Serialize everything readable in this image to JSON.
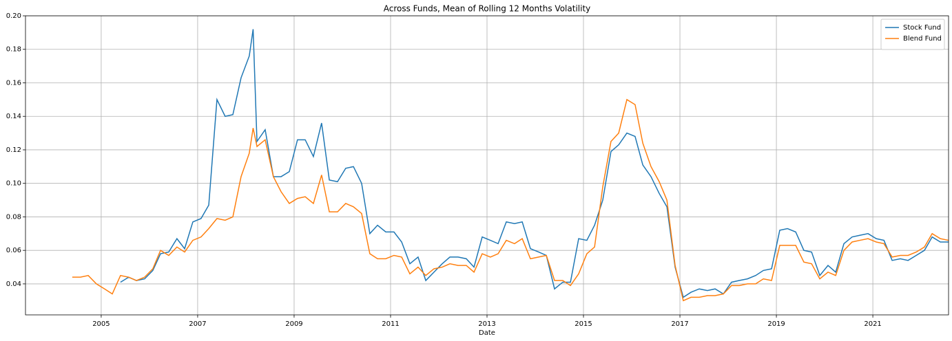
{
  "chart_data": {
    "type": "line",
    "title": "Across Funds, Mean of Rolling 12 Months Volatility",
    "x_label": "Date",
    "x": [
      2004.4,
      2004.57,
      2004.73,
      2004.9,
      2005.07,
      2005.23,
      2005.4,
      2005.57,
      2005.73,
      2005.9,
      2006.07,
      2006.23,
      2006.4,
      2006.57,
      2006.73,
      2006.9,
      2007.07,
      2007.23,
      2007.4,
      2007.57,
      2007.73,
      2007.9,
      2008.07,
      2008.15,
      2008.23,
      2008.4,
      2008.57,
      2008.73,
      2008.9,
      2009.07,
      2009.23,
      2009.4,
      2009.57,
      2009.73,
      2009.9,
      2010.07,
      2010.23,
      2010.4,
      2010.57,
      2010.73,
      2010.9,
      2011.07,
      2011.23,
      2011.4,
      2011.57,
      2011.73,
      2011.9,
      2012.07,
      2012.23,
      2012.4,
      2012.57,
      2012.73,
      2012.9,
      2013.07,
      2013.23,
      2013.4,
      2013.57,
      2013.73,
      2013.9,
      2014.07,
      2014.23,
      2014.4,
      2014.57,
      2014.73,
      2014.9,
      2015.07,
      2015.23,
      2015.4,
      2015.57,
      2015.73,
      2015.9,
      2016.07,
      2016.23,
      2016.4,
      2016.57,
      2016.73,
      2016.9,
      2017.07,
      2017.23,
      2017.4,
      2017.57,
      2017.73,
      2017.9,
      2018.07,
      2018.23,
      2018.4,
      2018.57,
      2018.73,
      2018.9,
      2019.07,
      2019.23,
      2019.4,
      2019.57,
      2019.73,
      2019.9,
      2020.07,
      2020.23,
      2020.4,
      2020.57,
      2020.73,
      2020.9,
      2021.07,
      2021.23,
      2021.4,
      2021.57,
      2021.73,
      2021.9,
      2022.07,
      2022.23,
      2022.4,
      2022.57
    ],
    "series": [
      {
        "name": "Stock Fund",
        "color": "#1f77b4",
        "values": [
          null,
          null,
          null,
          null,
          null,
          null,
          0.041,
          0.044,
          0.042,
          0.043,
          0.048,
          0.058,
          0.059,
          0.067,
          0.061,
          0.077,
          0.079,
          0.087,
          0.15,
          0.14,
          0.141,
          0.163,
          0.176,
          0.192,
          0.125,
          0.132,
          0.104,
          0.104,
          0.107,
          0.126,
          0.126,
          0.116,
          0.136,
          0.102,
          0.101,
          0.109,
          0.11,
          0.1,
          0.07,
          0.075,
          0.071,
          0.071,
          0.065,
          0.052,
          0.056,
          0.042,
          0.047,
          0.052,
          0.056,
          0.056,
          0.055,
          0.05,
          0.068,
          0.066,
          0.064,
          0.077,
          0.076,
          0.077,
          0.061,
          0.059,
          0.057,
          0.037,
          0.041,
          0.041,
          0.067,
          0.066,
          0.075,
          0.09,
          0.119,
          0.123,
          0.13,
          0.128,
          0.111,
          0.104,
          0.094,
          0.086,
          0.05,
          0.032,
          0.035,
          0.037,
          0.036,
          0.037,
          0.034,
          0.041,
          0.042,
          0.043,
          0.045,
          0.048,
          0.049,
          0.072,
          0.073,
          0.071,
          0.06,
          0.059,
          0.045,
          0.051,
          0.047,
          0.064,
          0.068,
          0.069,
          0.07,
          0.067,
          0.066,
          0.054,
          0.055,
          0.054,
          0.057,
          0.06,
          0.068,
          0.065,
          0.065
        ]
      },
      {
        "name": "Blend Fund",
        "color": "#ff7f0e",
        "values": [
          0.044,
          0.044,
          0.045,
          0.04,
          0.037,
          0.034,
          0.045,
          0.044,
          0.042,
          0.044,
          0.049,
          0.06,
          0.057,
          0.062,
          0.059,
          0.066,
          0.068,
          0.073,
          0.079,
          0.078,
          0.08,
          0.104,
          0.118,
          0.133,
          0.122,
          0.126,
          0.104,
          0.095,
          0.088,
          0.091,
          0.092,
          0.088,
          0.105,
          0.083,
          0.083,
          0.088,
          0.086,
          0.082,
          0.058,
          0.055,
          0.055,
          0.057,
          0.056,
          0.046,
          0.05,
          0.045,
          0.049,
          0.05,
          0.052,
          0.051,
          0.051,
          0.047,
          0.058,
          0.056,
          0.058,
          0.066,
          0.064,
          0.067,
          0.055,
          0.056,
          0.057,
          0.042,
          0.042,
          0.039,
          0.046,
          0.058,
          0.062,
          0.098,
          0.125,
          0.13,
          0.15,
          0.147,
          0.124,
          0.11,
          0.101,
          0.09,
          0.051,
          0.03,
          0.032,
          0.032,
          0.033,
          0.033,
          0.034,
          0.039,
          0.039,
          0.04,
          0.04,
          0.043,
          0.042,
          0.063,
          0.063,
          0.063,
          0.053,
          0.052,
          0.043,
          0.047,
          0.045,
          0.06,
          0.065,
          0.066,
          0.067,
          0.065,
          0.064,
          0.056,
          0.057,
          0.057,
          0.059,
          0.062,
          0.07,
          0.067,
          0.066
        ]
      }
    ],
    "xlim": [
      2003.43,
      2022.57
    ],
    "xticks": [
      2005,
      2007,
      2009,
      2011,
      2013,
      2015,
      2017,
      2019,
      2021
    ],
    "ylim": [
      0.0215,
      0.2
    ],
    "yticks": [
      0.04,
      0.06,
      0.08,
      {
        "value": 0.1,
        "label": "0.10"
      },
      0.12,
      0.14,
      0.16,
      0.18,
      {
        "value": 0.2,
        "label": "0.20"
      }
    ],
    "grid": true,
    "legend": "upper right"
  }
}
